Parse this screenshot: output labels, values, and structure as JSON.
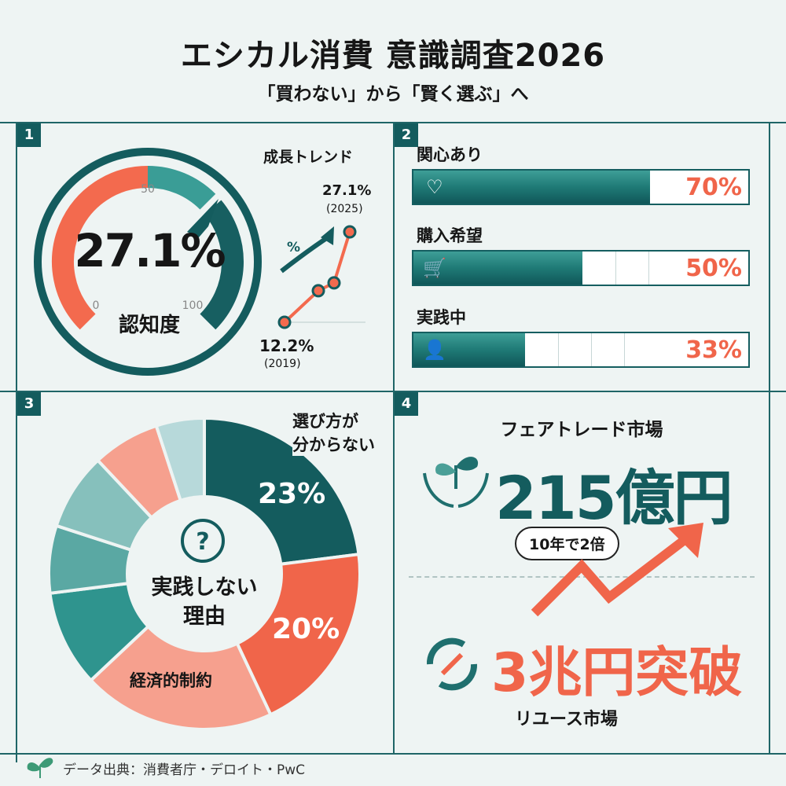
{
  "header": {
    "title": "エシカル消費 意識調査2026",
    "subtitle": "「買わない」から「賢く選ぶ」へ"
  },
  "panels": {
    "p1": {
      "badge": "1",
      "gauge_value": "27.1%",
      "gauge_label": "認知度",
      "tick_0": "0",
      "tick_50": "50",
      "tick_100": "100",
      "trend_title": "成長トレンド",
      "trend_arrow_label": "%",
      "end_value": "27.1%",
      "end_year": "(2025)",
      "start_value": "12.2%",
      "start_year": "(2019)"
    },
    "p2": {
      "badge": "2",
      "bars": [
        {
          "label": "関心あり",
          "value": "70%",
          "icon": "heart-icon"
        },
        {
          "label": "購入希望",
          "value": "50%",
          "icon": "cart-icon"
        },
        {
          "label": "実践中",
          "value": "33%",
          "icon": "person-leaf-icon"
        }
      ]
    },
    "p3": {
      "badge": "3",
      "center_label_1": "実践しない",
      "center_label_2": "理由",
      "top_reason_1": "選び方が",
      "top_reason_2": "分からない",
      "pct_1": "23%",
      "pct_2": "20%",
      "econ_label": "経済的制約"
    },
    "p4": {
      "badge": "4",
      "fairtrade_label": "フェアトレード市場",
      "fairtrade_value": "215億円",
      "bubble": "10年で2倍",
      "reuse_value": "3兆円突破",
      "reuse_label": "リユース市場"
    }
  },
  "footer": {
    "source": "データ出典：消費者庁・デロイト・PwC"
  },
  "colors": {
    "teal_dark": "#145c5e",
    "teal": "#2f948e",
    "coral": "#f0654a",
    "coral_light": "#f6a08e",
    "teal_light": "#b7d9da",
    "bg": "#eef4f3"
  },
  "chart_data": [
    {
      "type": "gauge",
      "title": "認知度",
      "value": 27.1,
      "unit": "%",
      "range": [
        0,
        100
      ],
      "ticks": [
        "0",
        "50",
        "100"
      ]
    },
    {
      "type": "line",
      "title": "成長トレンド",
      "x": [
        "2019",
        "",
        "",
        "2025"
      ],
      "values": [
        12.2,
        17.4,
        18.7,
        27.1
      ],
      "unit": "%"
    },
    {
      "type": "bar",
      "orientation": "horizontal",
      "categories": [
        "関心あり",
        "購入希望",
        "実践中"
      ],
      "values": [
        70,
        50,
        33
      ],
      "unit": "%",
      "xlim": [
        0,
        100
      ]
    },
    {
      "type": "pie",
      "donut": true,
      "title": "実践しない理由",
      "categories": [
        "選び方が分からない",
        "",
        "経済的制約",
        "",
        "",
        "",
        "",
        ""
      ],
      "values": [
        23,
        20,
        20,
        10,
        7,
        8,
        7,
        5
      ],
      "labels": [
        "23%",
        "20%",
        "",
        "",
        "",
        "",
        "",
        ""
      ],
      "colors": [
        "#145c5e",
        "#f0654a",
        "#f6a08e",
        "#2f948e",
        "#5aa8a3",
        "#86c0bc",
        "#f6a08e",
        "#b7d9da"
      ]
    }
  ]
}
